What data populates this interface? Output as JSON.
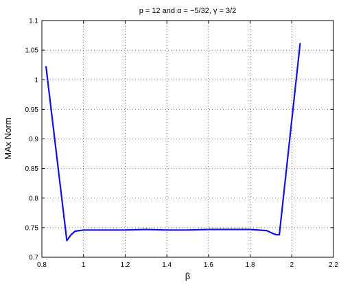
{
  "chart_data": {
    "type": "line",
    "title": "p = 12 and α = −5/32, γ = 3/2",
    "xlabel": "β",
    "ylabel": "MAx Norm",
    "xlim": [
      0.8,
      2.2
    ],
    "ylim": [
      0.7,
      1.1
    ],
    "grid": true,
    "x_ticks": [
      0.8,
      1,
      1.2,
      1.4,
      1.6,
      1.8,
      2,
      2.2
    ],
    "x_tick_labels": [
      "0.8",
      "1",
      "1.2",
      "1.4",
      "1.6",
      "1.8",
      "2",
      "2.2"
    ],
    "y_ticks": [
      0.7,
      0.75,
      0.8,
      0.85,
      0.9,
      0.95,
      1,
      1.05,
      1.1
    ],
    "y_tick_labels": [
      "0.7",
      "0.75",
      "0.8",
      "0.85",
      "0.9",
      "0.95",
      "1",
      "1.05",
      "1.1"
    ],
    "line_color": "#1010e0",
    "series": [
      {
        "x": [
          0.82,
          0.92,
          0.94,
          0.96,
          1.0,
          1.1,
          1.2,
          1.3,
          1.4,
          1.5,
          1.6,
          1.7,
          1.8,
          1.88,
          1.91,
          1.925,
          1.94,
          2.04
        ],
        "y": [
          1.022,
          0.728,
          0.738,
          0.744,
          0.746,
          0.746,
          0.746,
          0.747,
          0.746,
          0.746,
          0.747,
          0.747,
          0.747,
          0.745,
          0.74,
          0.738,
          0.738,
          1.061
        ]
      }
    ]
  }
}
